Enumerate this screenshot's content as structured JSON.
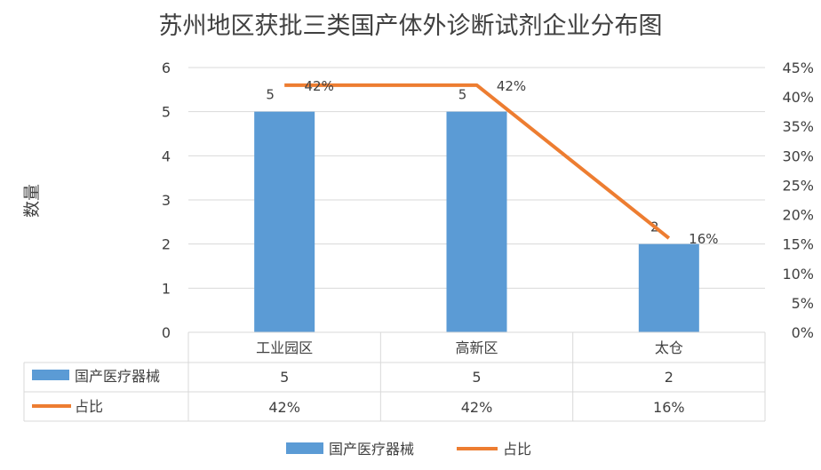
{
  "chart_data": {
    "type": "bar",
    "title": "苏州地区获批三类国产体外诊断试剂企业分布图",
    "ylabel": "数量",
    "categories": [
      "工业园区",
      "高新区",
      "太仓"
    ],
    "series": [
      {
        "name": "国产医疗器械",
        "type": "bar",
        "axis": "left",
        "color": "#5b9bd5",
        "values": [
          5,
          5,
          2
        ],
        "labels": [
          "5",
          "5",
          "2"
        ]
      },
      {
        "name": "占比",
        "type": "line",
        "axis": "right",
        "color": "#ed7d31",
        "values": [
          0.42,
          0.42,
          0.16
        ],
        "labels": [
          "42%",
          "42%",
          "16%"
        ]
      }
    ],
    "ylim": [
      0,
      6
    ],
    "y_ticks": [
      "0",
      "1",
      "2",
      "3",
      "4",
      "5",
      "6"
    ],
    "y2lim": [
      0,
      0.45
    ],
    "y2_ticks": [
      "0%",
      "5%",
      "10%",
      "15%",
      "20%",
      "25%",
      "30%",
      "35%",
      "40%",
      "45%"
    ],
    "grid": true,
    "legend": "bottom",
    "data_table": true
  }
}
